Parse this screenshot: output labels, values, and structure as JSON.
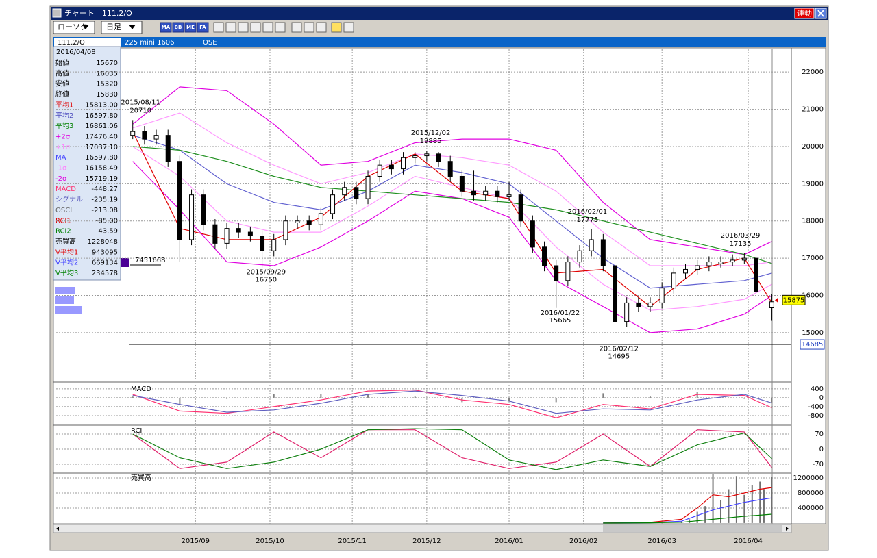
{
  "window": {
    "title": "チャート　111.2/O",
    "link_button": "連動"
  },
  "toolbar": {
    "chart_style": "ローソク",
    "period": "日足",
    "icons": [
      "MA",
      "BB",
      "ME",
      "FA"
    ]
  },
  "header": {
    "symbol": "111.2/O",
    "contract": "225 mini 1606",
    "exchange": "OSE"
  },
  "info_panel": {
    "date": "2016/04/08",
    "rows": [
      {
        "label": "始値",
        "value": "15670",
        "color": "#000000"
      },
      {
        "label": "高値",
        "value": "16035",
        "color": "#000000"
      },
      {
        "label": "安値",
        "value": "15320",
        "color": "#000000"
      },
      {
        "label": "終値",
        "value": "15830",
        "color": "#000000"
      },
      {
        "label": "平均1",
        "value": "15813.00",
        "color": "#e00000"
      },
      {
        "label": "平均2",
        "value": "16597.80",
        "color": "#5050c0"
      },
      {
        "label": "平均3",
        "value": "16861.06",
        "color": "#008000"
      },
      {
        "label": "+2σ",
        "value": "17476.40",
        "color": "#e000e0"
      },
      {
        "label": "+1σ",
        "value": "17037.10",
        "color": "#ff80ff"
      },
      {
        "label": "MA",
        "value": "16597.80",
        "color": "#4040ff"
      },
      {
        "label": "-1σ",
        "value": "16158.49",
        "color": "#ff80ff"
      },
      {
        "label": "-2σ",
        "value": "15719.19",
        "color": "#e000e0"
      },
      {
        "label": "MACD",
        "value": "-448.27",
        "color": "#ff3070"
      },
      {
        "label": "シグナル",
        "value": "-235.19",
        "color": "#6060c0"
      },
      {
        "label": "OSCI",
        "value": "-213.08",
        "color": "#606060"
      },
      {
        "label": "RCI1",
        "value": "-85.00",
        "color": "#e00000"
      },
      {
        "label": "RCI2",
        "value": "-43.59",
        "color": "#008000"
      },
      {
        "label": "売買高",
        "value": "1228048",
        "color": "#000000"
      },
      {
        "label": "V平均1",
        "value": "943095",
        "color": "#e00000"
      },
      {
        "label": "V平均2",
        "value": "669134",
        "color": "#4040ff"
      },
      {
        "label": "V平均3",
        "value": "234578",
        "color": "#008000"
      }
    ]
  },
  "chart_data": [
    {
      "type": "candlestick",
      "x": [
        0,
        3,
        6,
        9,
        12,
        15,
        18,
        21,
        24,
        27,
        30,
        33,
        36,
        39,
        42,
        45,
        48,
        51,
        54,
        57,
        60,
        63,
        66,
        69,
        72,
        75,
        78,
        81,
        84,
        87,
        90,
        93,
        96,
        99,
        102,
        105,
        108,
        111,
        114,
        117,
        120,
        123,
        126,
        129,
        132,
        135,
        138,
        141,
        144,
        147,
        150,
        153,
        156,
        159,
        163
      ],
      "open": [
        20300,
        20400,
        20200,
        20300,
        19600,
        17500,
        18700,
        17900,
        17400,
        17800,
        17700,
        17600,
        17200,
        17500,
        17950,
        18000,
        17900,
        18200,
        18700,
        18900,
        18600,
        19200,
        19500,
        19400,
        19700,
        19750,
        19800,
        19600,
        19200,
        18800,
        18700,
        18800,
        18650,
        18700,
        18000,
        17300,
        16800,
        16400,
        16900,
        17200,
        17500,
        16800,
        15300,
        15800,
        15700,
        15800,
        16200,
        16600,
        16700,
        16800,
        16850,
        16900,
        16950,
        17000,
        15670
      ],
      "high": [
        20710,
        20550,
        20450,
        20450,
        19750,
        18850,
        18850,
        18050,
        17950,
        17950,
        17850,
        17750,
        17650,
        18150,
        18150,
        18150,
        18350,
        18850,
        19050,
        19050,
        19350,
        19650,
        19650,
        19850,
        19850,
        19885,
        19850,
        19750,
        19350,
        19350,
        18950,
        18950,
        19050,
        18850,
        18150,
        17450,
        16950,
        17050,
        17350,
        17775,
        17650,
        16950,
        15950,
        15950,
        15950,
        16350,
        16750,
        16850,
        16950,
        17050,
        17050,
        17100,
        17135,
        17150,
        16035
      ],
      "low": [
        20200,
        20050,
        20050,
        19450,
        16900,
        17350,
        17750,
        17250,
        17250,
        17550,
        17450,
        16750,
        17050,
        17350,
        17800,
        17750,
        17750,
        18050,
        18550,
        18450,
        18450,
        19050,
        19250,
        19250,
        19550,
        19600,
        19450,
        19050,
        18650,
        18550,
        18550,
        18500,
        18550,
        17850,
        17150,
        16650,
        15665,
        16250,
        16750,
        17050,
        16650,
        14695,
        15150,
        15550,
        15550,
        15650,
        16050,
        16450,
        16550,
        16650,
        16750,
        16800,
        16850,
        15950,
        15320
      ],
      "close": [
        20400,
        20200,
        20300,
        19600,
        17500,
        18700,
        17900,
        17400,
        17800,
        17700,
        17600,
        17200,
        17500,
        18000,
        18000,
        17900,
        18200,
        18700,
        18900,
        18600,
        19200,
        19500,
        19400,
        19700,
        19750,
        19800,
        19600,
        19200,
        18800,
        18700,
        18800,
        18650,
        18700,
        18000,
        17300,
        16800,
        16400,
        16900,
        17200,
        17500,
        16800,
        15300,
        15800,
        15700,
        15800,
        16200,
        16600,
        16700,
        16800,
        16900,
        16900,
        16950,
        17000,
        16100,
        15830
      ],
      "xlim": [
        -1,
        168
      ],
      "ylim": [
        13730,
        22610
      ],
      "xticks": [
        {
          "value": 16,
          "label": "2015/09"
        },
        {
          "value": 35,
          "label": "2015/10"
        },
        {
          "value": 56,
          "label": "2015/11"
        },
        {
          "value": 75,
          "label": "2015/12"
        },
        {
          "value": 96,
          "label": "2016/01"
        },
        {
          "value": 115,
          "label": "2016/02"
        },
        {
          "value": 135,
          "label": "2016/03"
        },
        {
          "value": 157,
          "label": "2016/04"
        }
      ],
      "yticks": [
        15000,
        16000,
        17000,
        18000,
        19000,
        20000,
        21000,
        22000
      ],
      "line_x": [
        0,
        12,
        24,
        36,
        48,
        60,
        72,
        84,
        96,
        108,
        120,
        132,
        144,
        156,
        163
      ],
      "lines": [
        {
          "color": "#e000e0",
          "values": [
            20600,
            21600,
            21500,
            20600,
            19500,
            19600,
            20100,
            20200,
            20200,
            19900,
            18500,
            17500,
            17300,
            17100,
            17450
          ]
        },
        {
          "color": "#e000e0",
          "values": [
            19600,
            18300,
            16900,
            16800,
            17300,
            18000,
            18800,
            18600,
            18100,
            16400,
            15700,
            15000,
            15100,
            15500,
            16000
          ]
        },
        {
          "color": "#ff99ff",
          "values": [
            20500,
            20900,
            20100,
            19500,
            19000,
            19300,
            19800,
            19700,
            19500,
            18800,
            17700,
            16800,
            16800,
            16800,
            16900
          ]
        },
        {
          "color": "#ff99ff",
          "values": [
            20000,
            19200,
            18000,
            17700,
            17700,
            18400,
            19200,
            18900,
            18600,
            17300,
            16300,
            15600,
            15700,
            15900,
            16300
          ]
        },
        {
          "color": "#6060d0",
          "values": [
            20300,
            19900,
            19000,
            18500,
            18300,
            18800,
            19500,
            19300,
            19000,
            18000,
            17000,
            16200,
            16300,
            16400,
            16600
          ]
        },
        {
          "color": "#209020",
          "values": [
            20000,
            19900,
            19600,
            19200,
            18900,
            18800,
            18700,
            18600,
            18500,
            18300,
            18000,
            17700,
            17400,
            17100,
            16860
          ]
        },
        {
          "color": "#e00000",
          "values": [
            20400,
            17800,
            17500,
            17500,
            18100,
            19200,
            19800,
            18800,
            18600,
            16600,
            16700,
            15700,
            16700,
            17000,
            15810
          ]
        }
      ],
      "annotations": [
        {
          "x": 2,
          "date": "2015/08/11",
          "value": 20710
        },
        {
          "x": 34,
          "date": "2015/09/29",
          "value": 16750
        },
        {
          "x": 76,
          "date": "2015/12/02",
          "value": 19885
        },
        {
          "x": 109,
          "date": "2016/01/22",
          "value": 15665
        },
        {
          "x": 116,
          "date": "2016/02/01",
          "value": 17775
        },
        {
          "x": 124,
          "date": "2016/02/12",
          "value": 14695
        },
        {
          "x": 155,
          "date": "2016/03/29",
          "value": 17135
        }
      ],
      "last_price": 15875,
      "low_line": 14685,
      "profile_label": 7451668
    },
    {
      "type": "line",
      "title": "MACD",
      "xlim": [
        -1,
        168
      ],
      "ylim": [
        -1200,
        580
      ],
      "yticks": [
        400,
        0,
        -400,
        -800
      ],
      "bars": {
        "color": "#808080",
        "x": [
          0,
          12,
          24,
          36,
          48,
          60,
          72,
          84,
          96,
          108,
          120,
          132,
          144,
          156,
          163
        ],
        "values": [
          50,
          -300,
          -50,
          150,
          150,
          150,
          50,
          -200,
          -150,
          -200,
          200,
          50,
          250,
          -50,
          -213.08
        ]
      },
      "line_x": [
        0,
        12,
        24,
        36,
        48,
        60,
        72,
        84,
        96,
        108,
        120,
        132,
        144,
        156,
        163
      ],
      "lines": [
        {
          "color": "#ff3070",
          "values": [
            150,
            -600,
            -700,
            -400,
            -100,
            300,
            350,
            -100,
            -300,
            -900,
            -300,
            -500,
            150,
            100,
            -448.27
          ]
        },
        {
          "color": "#6060c0",
          "values": [
            100,
            -300,
            -650,
            -550,
            -250,
            150,
            300,
            100,
            -150,
            -700,
            -500,
            -550,
            -100,
            150,
            -235.19
          ]
        }
      ]
    },
    {
      "type": "line",
      "title": "RCI",
      "xlim": [
        -1,
        168
      ],
      "ylim": [
        -108,
        105
      ],
      "yticks": [
        70,
        0,
        -70
      ],
      "line_x": [
        0,
        12,
        24,
        36,
        48,
        60,
        72,
        84,
        96,
        108,
        120,
        132,
        144,
        156,
        163
      ],
      "lines": [
        {
          "color": "#e0206a",
          "values": [
            70,
            -90,
            -60,
            80,
            -40,
            90,
            90,
            -40,
            -90,
            -60,
            70,
            -80,
            90,
            80,
            -85
          ]
        },
        {
          "color": "#108010",
          "values": [
            70,
            -40,
            -90,
            -60,
            0,
            90,
            95,
            90,
            -50,
            -95,
            -50,
            -80,
            20,
            75,
            -43.59
          ]
        }
      ]
    },
    {
      "type": "bar",
      "title": "売買高",
      "xlim": [
        -1,
        168
      ],
      "ylim": [
        -20000,
        1310000
      ],
      "yticks": [
        1200000,
        800000,
        400000
      ],
      "bars": {
        "color": "#707070",
        "x": [
          140,
          142,
          144,
          146,
          148,
          150,
          152,
          154,
          156,
          158,
          160,
          161,
          163
        ],
        "values": [
          50000,
          100000,
          300000,
          450000,
          1300000,
          600000,
          900000,
          1250000,
          750000,
          1000000,
          1100000,
          900000,
          1228048
        ]
      },
      "line_x": [
        120,
        132,
        140,
        144,
        148,
        152,
        156,
        160,
        163
      ],
      "lines": [
        {
          "color": "#e00000",
          "values": [
            0,
            20000,
            100000,
            400000,
            750000,
            700000,
            800000,
            900000,
            943095
          ]
        },
        {
          "color": "#4040ff",
          "values": [
            0,
            10000,
            50000,
            200000,
            350000,
            450000,
            550000,
            620000,
            669134
          ]
        },
        {
          "color": "#008000",
          "values": [
            0,
            5000,
            20000,
            60000,
            100000,
            140000,
            180000,
            210000,
            234578
          ]
        }
      ]
    }
  ]
}
